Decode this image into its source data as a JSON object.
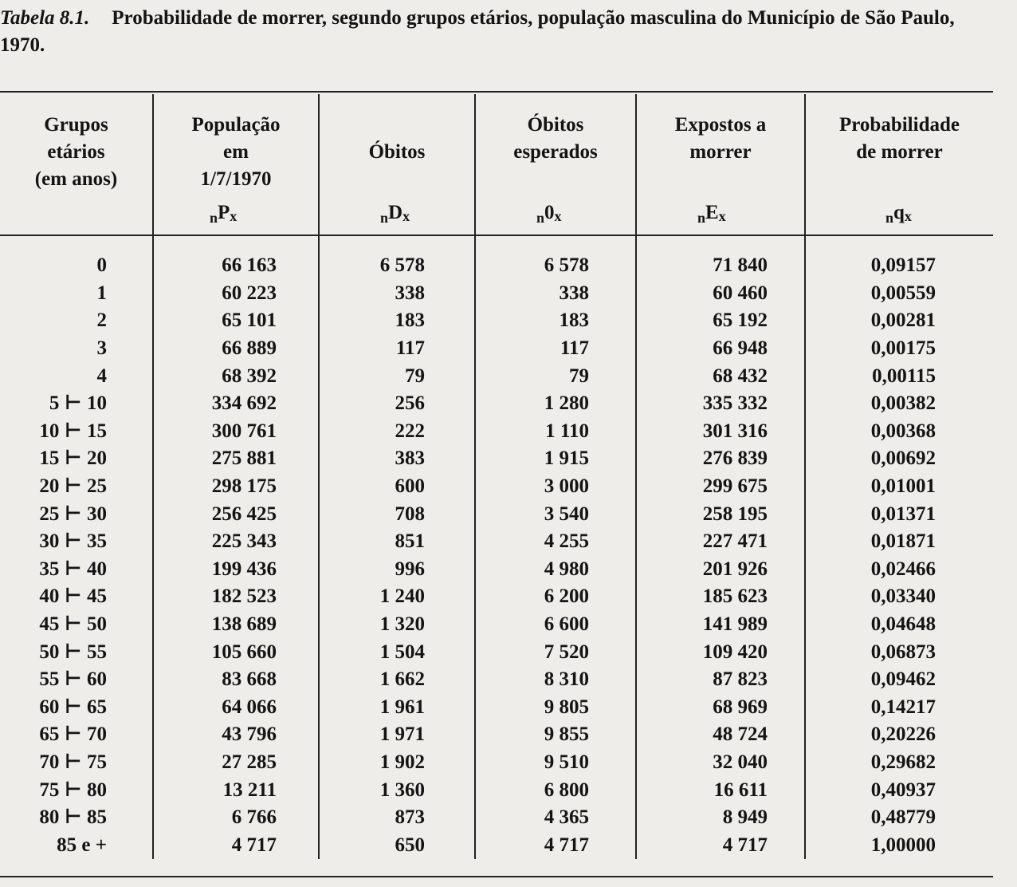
{
  "caption": {
    "label": "Tabela 8.1.",
    "title": "Probabilidade de morrer, segundo grupos etários, população masculina do Município de São Paulo, 1970."
  },
  "headers": [
    {
      "lines": [
        "Grupos",
        "etários",
        "(em anos)"
      ],
      "symbol": {
        "pre": "",
        "main": "",
        "sub": ""
      }
    },
    {
      "lines": [
        "População",
        "em",
        "1/7/1970"
      ],
      "symbol": {
        "pre": "n",
        "main": "P",
        "sub": "x"
      }
    },
    {
      "lines": [
        "",
        "Óbitos",
        ""
      ],
      "symbol": {
        "pre": "n",
        "main": "D",
        "sub": "x"
      }
    },
    {
      "lines": [
        "Óbitos",
        "esperados",
        ""
      ],
      "symbol": {
        "pre": "n",
        "main": "0",
        "sub": "x"
      }
    },
    {
      "lines": [
        "Expostos a",
        "morrer",
        ""
      ],
      "symbol": {
        "pre": "n",
        "main": "E",
        "sub": "x"
      }
    },
    {
      "lines": [
        "Probabilidade",
        "de morrer",
        ""
      ],
      "symbol": {
        "pre": "n",
        "main": "q",
        "sub": "x"
      }
    }
  ],
  "rows": [
    [
      "0",
      "66 163",
      "6 578",
      "6 578",
      "71 840",
      "0,09157"
    ],
    [
      "1",
      "60 223",
      "338",
      "338",
      "60 460",
      "0,00559"
    ],
    [
      "2",
      "65 101",
      "183",
      "183",
      "65 192",
      "0,00281"
    ],
    [
      "3",
      "66 889",
      "117",
      "117",
      "66 948",
      "0,00175"
    ],
    [
      "4",
      "68 392",
      "79",
      "79",
      "68 432",
      "0,00115"
    ],
    [
      "5 ⊢ 10",
      "334 692",
      "256",
      "1 280",
      "335 332",
      "0,00382"
    ],
    [
      "10 ⊢ 15",
      "300 761",
      "222",
      "1 110",
      "301 316",
      "0,00368"
    ],
    [
      "15 ⊢ 20",
      "275 881",
      "383",
      "1 915",
      "276 839",
      "0,00692"
    ],
    [
      "20 ⊢ 25",
      "298 175",
      "600",
      "3 000",
      "299 675",
      "0,01001"
    ],
    [
      "25 ⊢ 30",
      "256 425",
      "708",
      "3 540",
      "258 195",
      "0,01371"
    ],
    [
      "30 ⊢ 35",
      "225 343",
      "851",
      "4 255",
      "227 471",
      "0,01871"
    ],
    [
      "35 ⊢ 40",
      "199 436",
      "996",
      "4 980",
      "201 926",
      "0,02466"
    ],
    [
      "40 ⊢ 45",
      "182 523",
      "1 240",
      "6 200",
      "185 623",
      "0,03340"
    ],
    [
      "45 ⊢ 50",
      "138 689",
      "1 320",
      "6 600",
      "141 989",
      "0,04648"
    ],
    [
      "50 ⊢ 55",
      "105 660",
      "1 504",
      "7 520",
      "109 420",
      "0,06873"
    ],
    [
      "55 ⊢ 60",
      "83 668",
      "1 662",
      "8 310",
      "87 823",
      "0,09462"
    ],
    [
      "60 ⊢ 65",
      "64 066",
      "1 961",
      "9 805",
      "68 969",
      "0,14217"
    ],
    [
      "65 ⊢ 70",
      "43 796",
      "1 971",
      "9 855",
      "48 724",
      "0,20226"
    ],
    [
      "70 ⊢ 75",
      "27 285",
      "1 902",
      "9 510",
      "32 040",
      "0,29682"
    ],
    [
      "75 ⊢ 80",
      "13 211",
      "1 360",
      "6 800",
      "16 611",
      "0,40937"
    ],
    [
      "80 ⊢ 85",
      "6 766",
      "873",
      "4 365",
      "8 949",
      "0,48779"
    ],
    [
      "85 e +",
      "4 717",
      "650",
      "4 717",
      "4 717",
      "1,00000"
    ]
  ]
}
